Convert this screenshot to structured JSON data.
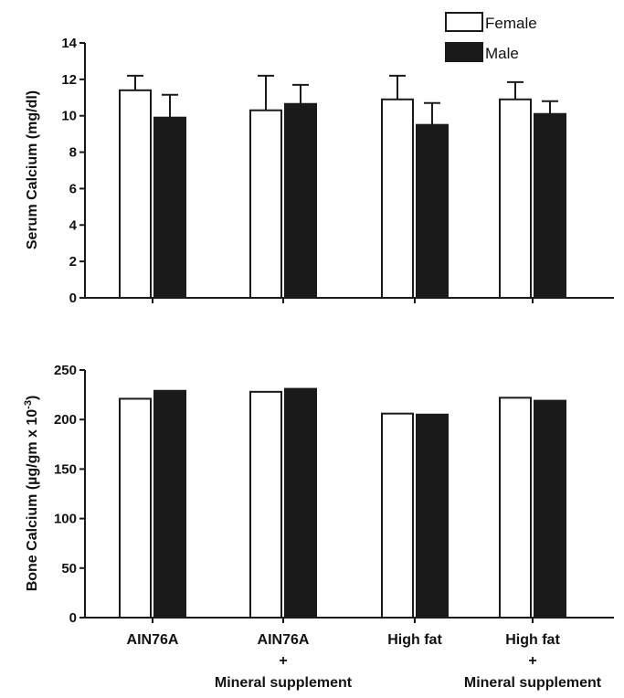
{
  "colors": {
    "female": "#ffffff",
    "male": "#1a1a1a",
    "stroke": "#1a1a1a"
  },
  "legend": {
    "placement": "top-right",
    "female": "Female",
    "male": "Male"
  },
  "chart_data": [
    {
      "type": "bar",
      "categories": [
        "AIN76A",
        "AIN76A + Mineral supplement",
        "High fat",
        "High fat + Mineral supplement"
      ],
      "series": [
        {
          "name": "Female",
          "values": [
            11.4,
            10.3,
            10.9,
            10.9
          ],
          "error": [
            0.8,
            1.9,
            1.3,
            0.95
          ]
        },
        {
          "name": "Male",
          "values": [
            9.9,
            10.65,
            9.5,
            10.1
          ],
          "error": [
            1.25,
            1.05,
            1.2,
            0.7
          ]
        }
      ],
      "ylabel": "Serum Calcium (mg/dl)",
      "ylim": [
        0,
        14
      ],
      "yticks": [
        "0",
        "2",
        "4",
        "6",
        "8",
        "10",
        "12",
        "14"
      ],
      "grid": false
    },
    {
      "type": "bar",
      "categories": [
        "AIN76A",
        "AIN76A + Mineral supplement",
        "High fat",
        "High fat + Mineral supplement"
      ],
      "series": [
        {
          "name": "Female",
          "values": [
            221,
            228,
            206,
            222
          ]
        },
        {
          "name": "Male",
          "values": [
            229,
            231,
            205,
            219
          ]
        }
      ],
      "ylabel": "Bone Calcium (µg/gm x 10",
      "ylabel_sup": "-3",
      "ylabel_end": ")",
      "ylim": [
        0,
        250
      ],
      "yticks": [
        "0",
        "50",
        "100",
        "150",
        "200",
        "250"
      ],
      "grid": false
    }
  ],
  "x_labels": [
    {
      "line1": "AIN76A",
      "line2": "",
      "line3": ""
    },
    {
      "line1": "AIN76A",
      "line2": "+",
      "line3": "Mineral supplement"
    },
    {
      "line1": "High fat",
      "line2": "",
      "line3": ""
    },
    {
      "line1": "High fat",
      "line2": "+",
      "line3": "Mineral supplement"
    }
  ]
}
